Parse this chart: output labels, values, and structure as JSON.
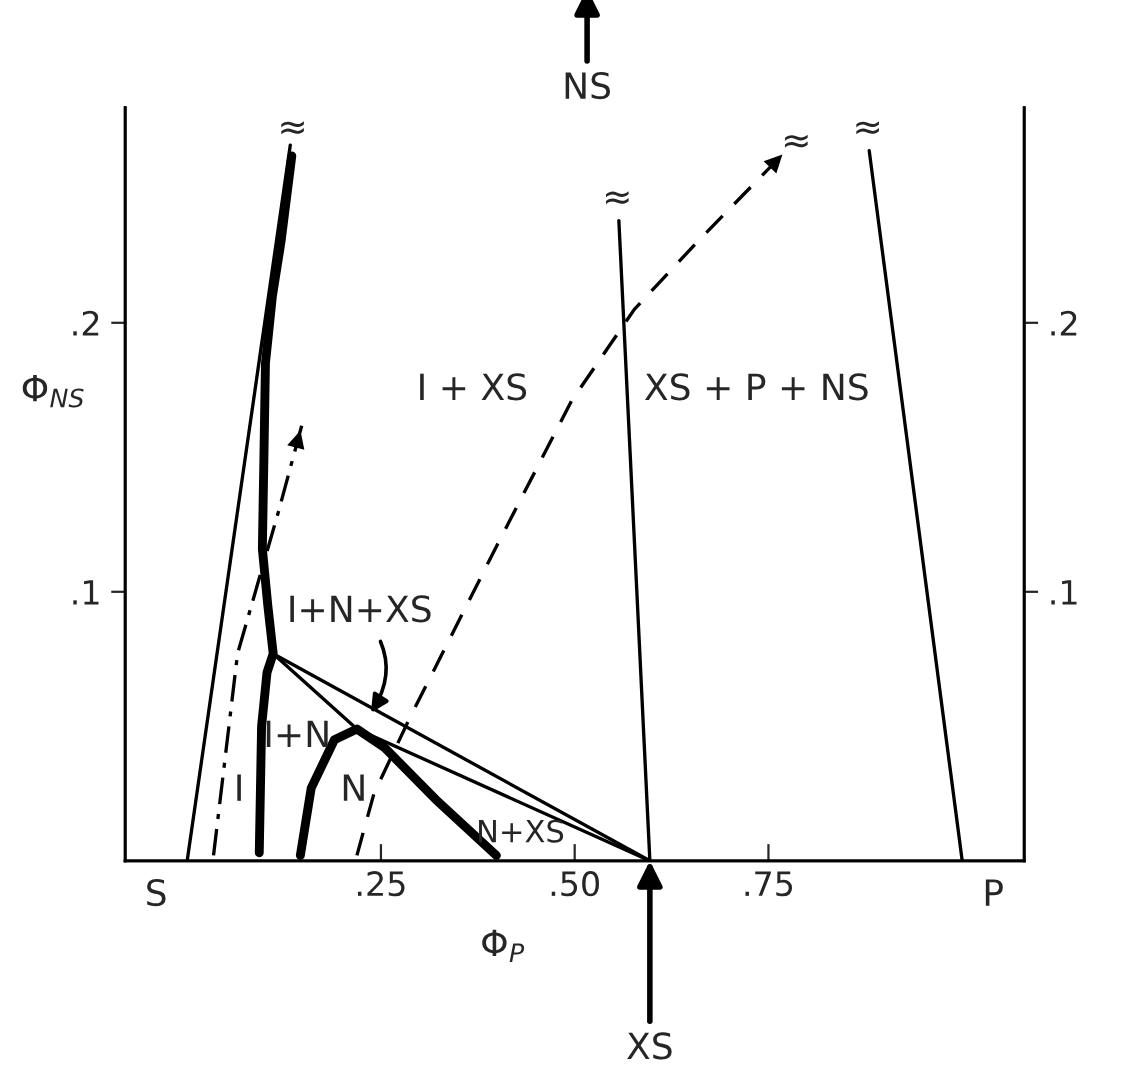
{
  "chart_data": {
    "type": "line",
    "xlabel": "Φ$_{P}$",
    "ylabel": "Φ$_{NS}$",
    "xlim": [
      -0.08,
      1.08
    ],
    "ylim": [
      0,
      0.28
    ],
    "xticks": [
      {
        "value": 0.25,
        "label": ".25"
      },
      {
        "value": 0.5,
        "label": ".50"
      },
      {
        "value": 0.75,
        "label": ".75"
      }
    ],
    "yticks": [
      {
        "value": 0.1,
        "label": ".1"
      },
      {
        "value": 0.2,
        "label": ".2"
      }
    ],
    "y2lim": [
      0,
      0.28
    ],
    "y2ticks": [
      {
        "value": 0.1,
        "label": ".1"
      },
      {
        "value": 0.2,
        "label": ".2"
      }
    ],
    "grid": false,
    "series": [
      {
        "color": "#000000",
        "line_style": "solid",
        "x": [
          0,
          0.133
        ],
        "values": [
          0,
          0.266
        ]
      },
      {
        "color": "#000000",
        "line_style": "solid",
        "x": [
          1.0,
          0.88
        ],
        "values": [
          0,
          0.264
        ]
      },
      {
        "color": "#000000",
        "line_style": "solid",
        "x": [
          0.597,
          0.557
        ],
        "values": [
          0,
          0.238
        ]
      },
      {
        "color": "#000000",
        "line_style": "solid",
        "x": [
          0.093,
          0.096,
          0.103,
          0.111,
          0.104,
          0.097,
          0.099,
          0.101,
          0.11,
          0.121,
          0.135
        ],
        "values": [
          0.003,
          0.05,
          0.07,
          0.077,
          0.095,
          0.116,
          0.15,
          0.185,
          0.21,
          0.23,
          0.262
        ]
      },
      {
        "color": "#000000",
        "line_style": "solid",
        "x": [
          0.146,
          0.16,
          0.19,
          0.219,
          0.255,
          0.32,
          0.399
        ],
        "values": [
          0.002,
          0.027,
          0.045,
          0.049,
          0.042,
          0.023,
          0.002
        ]
      },
      {
        "color": "#000000",
        "line_style": "solid",
        "x": [
          0.111,
          0.597
        ],
        "values": [
          0.077,
          0
        ]
      },
      {
        "color": "#000000",
        "line_style": "solid",
        "x": [
          0.111,
          0.219,
          0.597
        ],
        "values": [
          0.077,
          0.049,
          0
        ]
      },
      {
        "color": "#000000",
        "line_style": "dashdot",
        "x": [
          0.034,
          0.065,
          0.095,
          0.118,
          0.148
        ],
        "values": [
          0.002,
          0.077,
          0.107,
          0.13,
          0.162
        ]
      },
      {
        "color": "#000000",
        "line_style": "dashed",
        "x": [
          0.219,
          0.241,
          0.287,
          0.401,
          0.496,
          0.577,
          0.658,
          0.773
        ],
        "values": [
          0.002,
          0.025,
          0.053,
          0.118,
          0.171,
          0.205,
          0.23,
          0.264
        ]
      }
    ],
    "annotations": [
      "I + XS",
      "XS + P + NS",
      {
        "text": "I+N+XS",
        "x": 0.237,
        "y": 0.055
      },
      "I+N",
      "I",
      "N",
      "N+XS",
      "S",
      "P",
      "≈",
      "≈",
      "≈",
      "≈",
      "NS",
      "XS"
    ]
  }
}
